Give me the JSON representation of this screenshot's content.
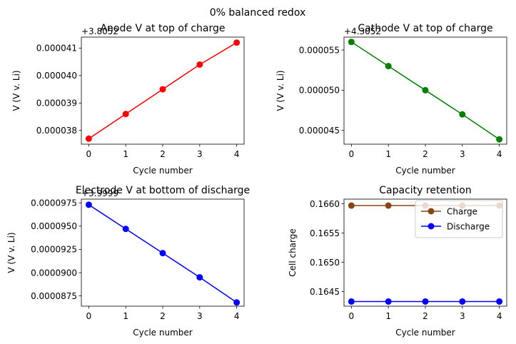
{
  "figure": {
    "suptitle": "0% balanced redox"
  },
  "chart_data": [
    {
      "id": "anode",
      "type": "line",
      "title": "Anode V at top of charge",
      "xlabel": "Cycle number",
      "ylabel": "V (V v. Li)",
      "offset_label": "+3.8052",
      "x": [
        0,
        1,
        2,
        3,
        4
      ],
      "xlim": [
        -0.2,
        4.2
      ],
      "xticks": [
        "0",
        "1",
        "2",
        "3",
        "4"
      ],
      "ylim": [
        3.75e-05,
        4.14e-05
      ],
      "yticks": [
        3.8e-05,
        3.9e-05,
        4e-05,
        4.1e-05
      ],
      "ytick_labels": [
        "0.000038",
        "0.000039",
        "0.000040",
        "0.000041"
      ],
      "series": [
        {
          "values": [
            3.77e-05,
            3.86e-05,
            3.95e-05,
            4.04e-05,
            4.12e-05
          ],
          "color": "#ff0000"
        }
      ]
    },
    {
      "id": "cathode",
      "type": "line",
      "title": "Cathode V at top of charge",
      "xlabel": "Cycle number",
      "ylabel": "V (V v. Li)",
      "offset_label": "+4.3052",
      "x": [
        0,
        1,
        2,
        3,
        4
      ],
      "xlim": [
        -0.2,
        4.2
      ],
      "xticks": [
        "0",
        "1",
        "2",
        "3",
        "4"
      ],
      "ylim": [
        4.33e-05,
        5.66e-05
      ],
      "yticks": [
        4.5e-05,
        5e-05,
        5.5e-05
      ],
      "ytick_labels": [
        "0.000045",
        "0.000050",
        "0.000055"
      ],
      "series": [
        {
          "values": [
            5.6e-05,
            5.3e-05,
            5e-05,
            4.7e-05,
            4.39e-05
          ],
          "color": "#008000"
        }
      ]
    },
    {
      "id": "electrode",
      "type": "line",
      "title": "Electrode V at bottom of discharge",
      "xlabel": "Cycle number",
      "ylabel": "V (V v. Li)",
      "offset_label": "+3.9999",
      "x": [
        0,
        1,
        2,
        3,
        4
      ],
      "xlim": [
        -0.2,
        4.2
      ],
      "xticks": [
        "0",
        "1",
        "2",
        "3",
        "4"
      ],
      "ylim": [
        8.64e-05,
        9.79e-05
      ],
      "yticks": [
        8.75e-05,
        9e-05,
        9.25e-05,
        9.5e-05,
        9.75e-05
      ],
      "ytick_labels": [
        "0.0000875",
        "0.0000900",
        "0.0000925",
        "0.0000950",
        "0.0000975"
      ],
      "series": [
        {
          "values": [
            9.73e-05,
            9.47e-05,
            9.21e-05,
            8.95e-05,
            8.68e-05
          ],
          "color": "#0000ff"
        }
      ]
    },
    {
      "id": "capacity",
      "type": "line",
      "title": "Capacity retention",
      "xlabel": "Cycle number",
      "ylabel": "Cell charge",
      "offset_label": "",
      "x": [
        0,
        1,
        2,
        3,
        4
      ],
      "xlim": [
        -0.2,
        4.2
      ],
      "xticks": [
        "0",
        "1",
        "2",
        "3",
        "4"
      ],
      "ylim": [
        0.16425,
        0.16608
      ],
      "yticks": [
        0.1645,
        0.165,
        0.1655,
        0.166
      ],
      "ytick_labels": [
        "0.1645",
        "0.1650",
        "0.1655",
        "0.1660"
      ],
      "legend": "upper right",
      "series": [
        {
          "name": "Charge",
          "values": [
            0.16597,
            0.16597,
            0.16597,
            0.16597,
            0.16597
          ],
          "color": "#8b4513"
        },
        {
          "name": "Discharge",
          "values": [
            0.16433,
            0.16433,
            0.16433,
            0.16433,
            0.16433
          ],
          "color": "#0000ff"
        }
      ]
    }
  ]
}
